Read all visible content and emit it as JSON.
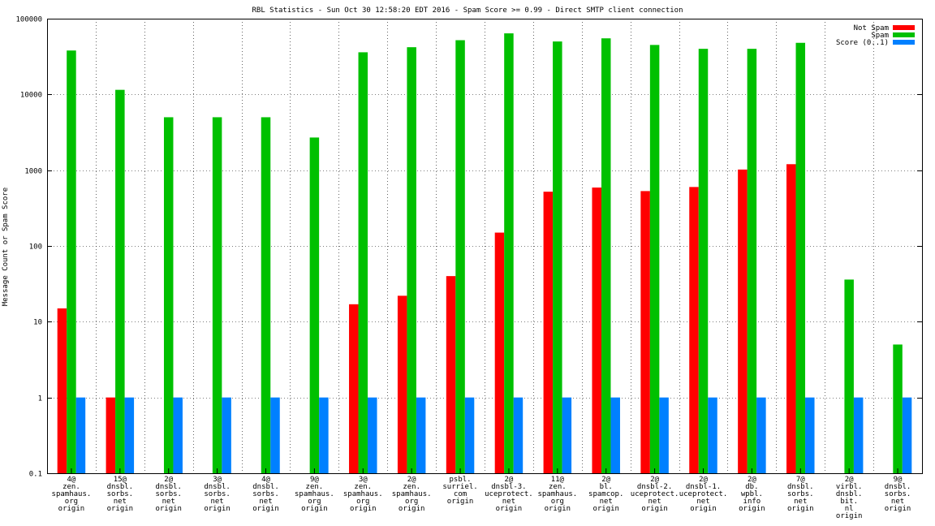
{
  "chart_data": {
    "type": "bar",
    "title": "RBL Statistics - Sun Oct 30 12:58:20 EDT 2016 - Spam Score >= 0.99 - Direct SMTP client connection",
    "xlabel": "",
    "ylabel": "Message Count or Spam Score",
    "yscale": "log",
    "ylim": [
      0.1,
      100000
    ],
    "yticks": [
      0.1,
      1,
      10,
      100,
      1000,
      10000,
      100000
    ],
    "ytick_labels": [
      "0.1",
      "1",
      "10",
      "100",
      "1000",
      "10000",
      "100000"
    ],
    "grid": true,
    "legend_position": "top-right",
    "categories": [
      [
        "4@",
        "zen.",
        "spamhaus.",
        "org",
        "origin"
      ],
      [
        "15@",
        "dnsbl.",
        "sorbs.",
        "net",
        "origin"
      ],
      [
        "2@",
        "dnsbl.",
        "sorbs.",
        "net",
        "origin"
      ],
      [
        "3@",
        "dnsbl.",
        "sorbs.",
        "net",
        "origin"
      ],
      [
        "4@",
        "dnsbl.",
        "sorbs.",
        "net",
        "origin"
      ],
      [
        "9@",
        "zen.",
        "spamhaus.",
        "org",
        "origin"
      ],
      [
        "3@",
        "zen.",
        "spamhaus.",
        "org",
        "origin"
      ],
      [
        "2@",
        "zen.",
        "spamhaus.",
        "org",
        "origin"
      ],
      [
        "psbl.",
        "surriel.",
        "com",
        "origin"
      ],
      [
        "2@",
        "dnsbl-3.",
        "uceprotect.",
        "net",
        "origin"
      ],
      [
        "11@",
        "zen.",
        "spamhaus.",
        "org",
        "origin"
      ],
      [
        "2@",
        "bl.",
        "spamcop.",
        "net",
        "origin"
      ],
      [
        "2@",
        "dnsbl-2.",
        "uceprotect.",
        "net",
        "origin"
      ],
      [
        "2@",
        "dnsbl-1.",
        "uceprotect.",
        "net",
        "origin"
      ],
      [
        "2@",
        "db.",
        "wpbl.",
        "info",
        "origin"
      ],
      [
        "7@",
        "dnsbl.",
        "sorbs.",
        "net",
        "origin"
      ],
      [
        "2@",
        "virbl.",
        "dnsbl.",
        "bit.",
        "nl",
        "origin"
      ],
      [
        "9@",
        "dnsbl.",
        "sorbs.",
        "net",
        "origin"
      ]
    ],
    "series": [
      {
        "name": "Not Spam",
        "color": "#ff0000",
        "values": [
          15,
          1,
          null,
          null,
          null,
          null,
          17,
          22,
          40,
          150,
          520,
          590,
          530,
          600,
          1020,
          1200,
          null,
          null
        ]
      },
      {
        "name": "Spam",
        "color": "#00c000",
        "values": [
          38000,
          11500,
          5000,
          5000,
          5000,
          2700,
          36000,
          42000,
          52000,
          64000,
          50000,
          55000,
          45000,
          40000,
          40000,
          48000,
          36,
          5
        ]
      },
      {
        "name": "Score (0..1)",
        "color": "#0080ff",
        "values": [
          1,
          1,
          1,
          1,
          1,
          1,
          1,
          1,
          1,
          1,
          1,
          1,
          1,
          1,
          1,
          1,
          1,
          1
        ]
      }
    ]
  }
}
